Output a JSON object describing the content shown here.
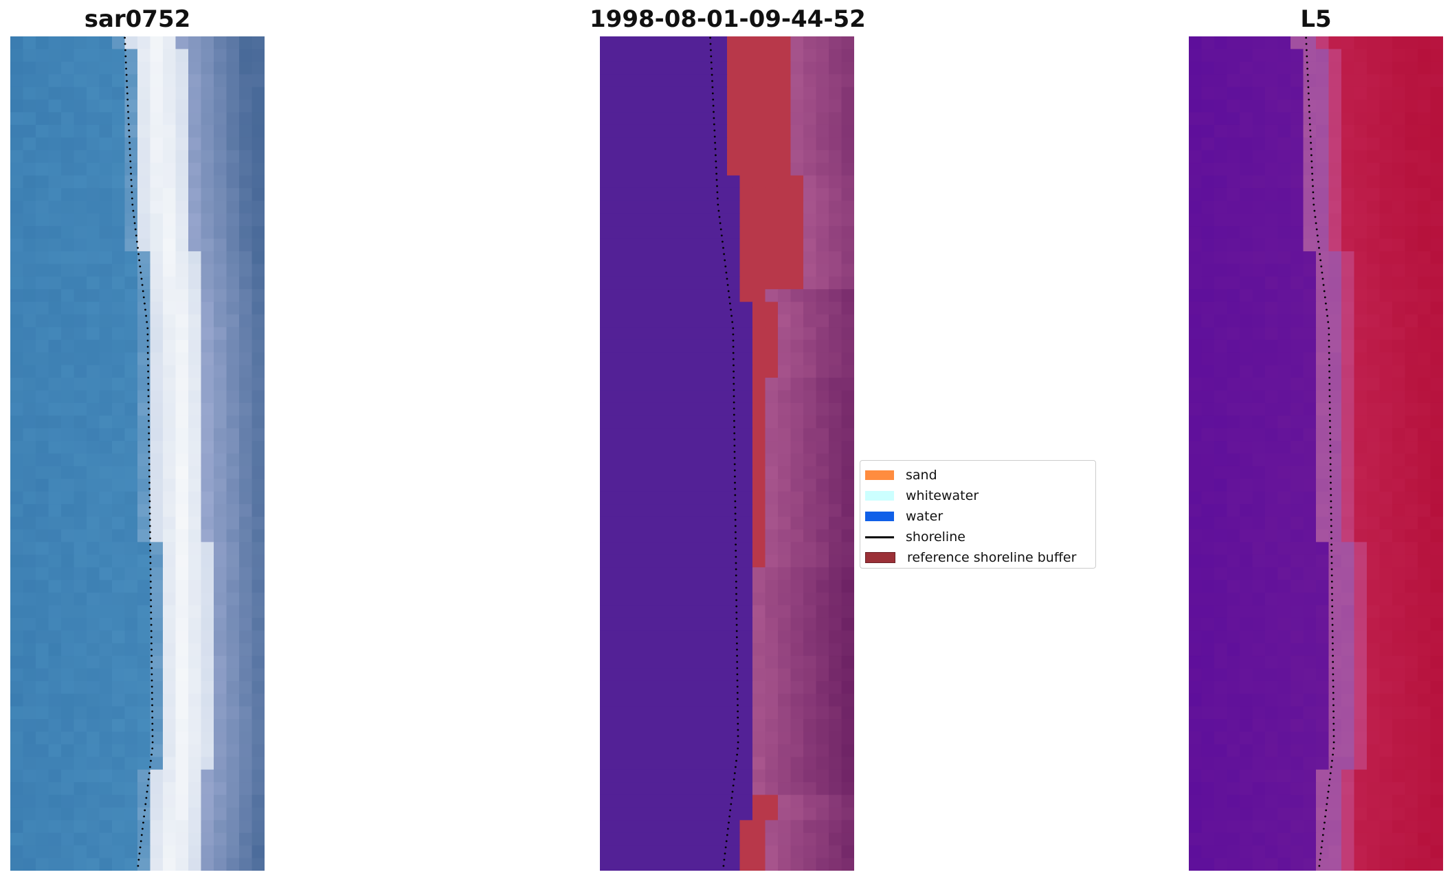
{
  "chart_data": [
    {
      "type": "heatmap",
      "title": "sar0752",
      "description_colors": [
        "#3b7fb0",
        "#f4f6f8",
        "#5f7aa6"
      ],
      "axes": "off"
    },
    {
      "type": "heatmap",
      "title": "1998-08-01-09-44-52",
      "axes": "off",
      "legend": {
        "placement": "right",
        "entries": [
          {
            "label": "sand",
            "color": "#ff8c3f",
            "kind": "patch"
          },
          {
            "label": "whitewater",
            "color": "#ccffff",
            "kind": "patch"
          },
          {
            "label": "water",
            "color": "#1060e8",
            "kind": "patch"
          },
          {
            "label": "shoreline",
            "color": "#000000",
            "kind": "line"
          },
          {
            "label": "reference shoreline buffer",
            "color": "#9b3037",
            "kind": "patch"
          }
        ]
      }
    },
    {
      "type": "heatmap",
      "title": "L5",
      "axes": "off"
    }
  ],
  "colors": {
    "water_class": "#532196",
    "buffer": "#b8384a",
    "land_mix": "#a3548a",
    "land_dark": "#7a2d68"
  }
}
